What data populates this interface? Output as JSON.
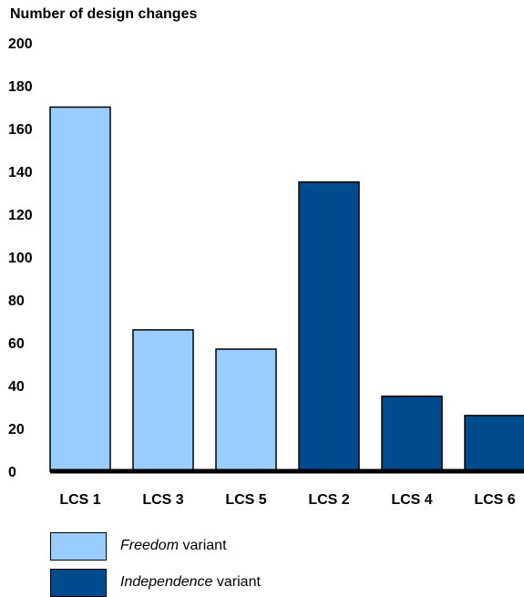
{
  "chart_data": {
    "type": "bar",
    "ylabel": "Number of design changes",
    "categories": [
      "LCS 1",
      "LCS 3",
      "LCS 5",
      "LCS 2",
      "LCS 4",
      "LCS 6"
    ],
    "values": [
      170,
      66,
      57,
      135,
      35,
      26
    ],
    "series_assignment": [
      "Freedom",
      "Freedom",
      "Freedom",
      "Independence",
      "Independence",
      "Independence"
    ],
    "ylim": [
      0,
      200
    ],
    "yticks": [
      0,
      20,
      40,
      60,
      80,
      100,
      120,
      140,
      160,
      180,
      200
    ],
    "grid": false,
    "legend_position": "bottom-left",
    "series": [
      {
        "name": "Freedom",
        "label_italic": "Freedom",
        "label_rest": "variant",
        "color": "#99ccff"
      },
      {
        "name": "Independence",
        "label_italic": "Independence",
        "label_rest": "variant",
        "color": "#004b8d"
      }
    ]
  }
}
